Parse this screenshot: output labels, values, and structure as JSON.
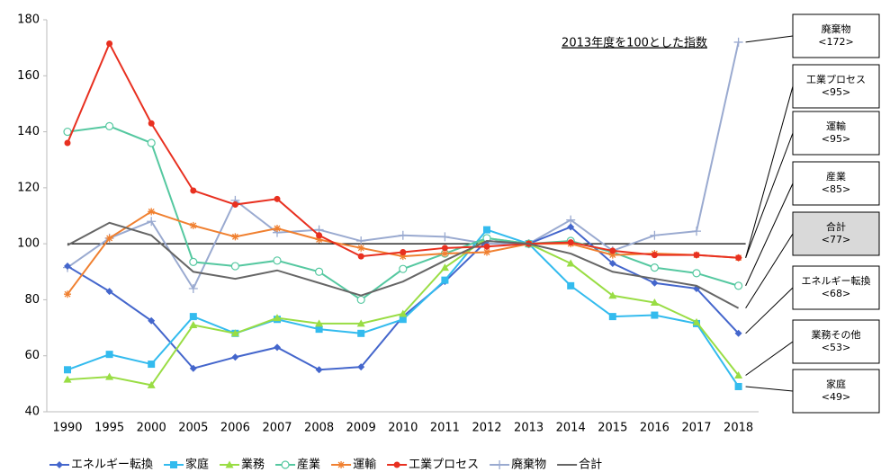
{
  "chart_data": {
    "type": "line",
    "categories": [
      "1990",
      "1995",
      "2000",
      "2005",
      "2006",
      "2007",
      "2008",
      "2009",
      "2010",
      "2011",
      "2012",
      "2013",
      "2014",
      "2015",
      "2016",
      "2017",
      "2018"
    ],
    "ylim": [
      40,
      180
    ],
    "yticks": [
      40,
      60,
      80,
      100,
      120,
      140,
      160,
      180
    ],
    "reference_line": 100,
    "annotation": "2013年度を100とした指数",
    "series": [
      {
        "name": "エネルギー転換",
        "color": "#4466cc",
        "marker": "diamond",
        "values": [
          92,
          83,
          72.5,
          55.5,
          59.5,
          63,
          55,
          56,
          74,
          86.5,
          101,
          100,
          106,
          93,
          86,
          84,
          68
        ]
      },
      {
        "name": "家庭",
        "color": "#33bbee",
        "marker": "square",
        "values": [
          55,
          60.5,
          57,
          74,
          68,
          73,
          69.5,
          68,
          73,
          87,
          105,
          100,
          85,
          74,
          74.5,
          71.5,
          49
        ]
      },
      {
        "name": "業務",
        "color": "#99dd44",
        "marker": "triangle",
        "values": [
          51.5,
          52.5,
          49.5,
          71,
          68,
          73.5,
          71.5,
          71.5,
          75,
          91.5,
          102,
          100,
          93,
          81.5,
          79,
          72,
          53
        ]
      },
      {
        "name": "産業",
        "color": "#55c8a0",
        "marker": "circle-open",
        "values": [
          140,
          142,
          136,
          93.5,
          92,
          94,
          90,
          80,
          91,
          96.5,
          102,
          100,
          101,
          97,
          91.5,
          89.5,
          85
        ]
      },
      {
        "name": "運輸",
        "color": "#f08030",
        "marker": "star",
        "values": [
          82,
          102,
          111.5,
          106.5,
          102.5,
          105.5,
          101.5,
          98.5,
          95.5,
          96.5,
          97,
          100,
          100,
          96,
          96.5,
          96,
          95
        ]
      },
      {
        "name": "工業プロセス",
        "color": "#e83020",
        "marker": "circle",
        "values": [
          136,
          171.5,
          143,
          119,
          114,
          116,
          103,
          95.5,
          97,
          98.5,
          99,
          100,
          100.5,
          97.5,
          96,
          96,
          95
        ]
      },
      {
        "name": "廃棄物",
        "color": "#9aaad0",
        "marker": "plus",
        "values": [
          91.5,
          102,
          108,
          84,
          115.5,
          104,
          105,
          101,
          103,
          102.5,
          100,
          100,
          108.5,
          97.5,
          103,
          104.5,
          172
        ]
      },
      {
        "name": "合計",
        "color": "#666666",
        "marker": "none",
        "values": [
          99.5,
          107.5,
          103,
          90,
          87.5,
          90.5,
          86,
          81.5,
          86.5,
          94,
          101,
          100,
          96.5,
          90,
          87.5,
          85,
          77
        ]
      }
    ],
    "callouts": [
      {
        "title": "廃棄物",
        "value_label": "<172>"
      },
      {
        "title": "工業プロセス",
        "value_label": "<95>"
      },
      {
        "title": "運輸",
        "value_label": "<95>"
      },
      {
        "title": "産業",
        "value_label": "<85>"
      },
      {
        "title": "合計",
        "value_label": "<77>"
      },
      {
        "title": "エネルギー転換",
        "value_label": "<68>"
      },
      {
        "title": "業務その他",
        "value_label": "<53>"
      },
      {
        "title": "家庭",
        "value_label": "<49>"
      }
    ]
  }
}
